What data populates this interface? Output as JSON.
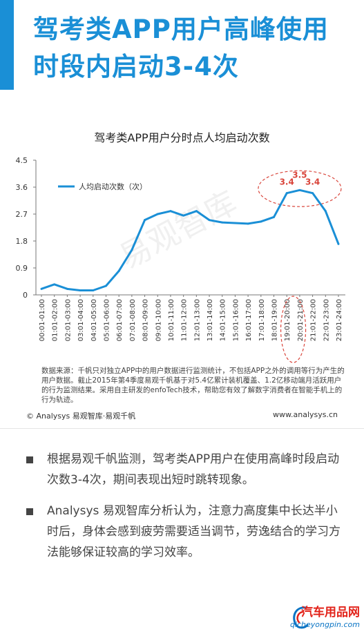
{
  "header": {
    "title_line1": "驾考类APP用户高峰使用",
    "title_line2": "时段内启动3-4次"
  },
  "chart_data": {
    "type": "line",
    "title": "驾考类APP用户分时点人均启动次数",
    "legend_position": "top-left",
    "ylim": [
      0,
      4.5
    ],
    "yticks": [
      "4.5",
      "3.6",
      "2.7",
      "1.8",
      "0.9",
      "0"
    ],
    "categories": [
      "00:01-01:00",
      "01:01-02:00",
      "02:01-03:00",
      "03:01-04:00",
      "04:01-05:00",
      "05:01-06:00",
      "06:01-07:00",
      "07:01-08:00",
      "08:01-09:00",
      "09:01-10:00",
      "10:01-11:00",
      "11:01-12:00",
      "12:01-13:00",
      "13:01-14:00",
      "14:01-15:00",
      "15:01-16:00",
      "16:01-17:00",
      "17:01-18:00",
      "18:01-19:00",
      "19:01-20:00",
      "20:01-21:00",
      "21:01-22:00",
      "22:01-23:00",
      "23:01-24:00"
    ],
    "series": [
      {
        "name": "人均启动次数（次）",
        "color": "#1a8fd6",
        "values": [
          0.2,
          0.35,
          0.2,
          0.15,
          0.15,
          0.3,
          0.8,
          1.5,
          2.5,
          2.7,
          2.8,
          2.65,
          2.8,
          2.5,
          2.42,
          2.4,
          2.38,
          2.45,
          2.6,
          3.4,
          3.5,
          3.4,
          2.8,
          1.7
        ]
      }
    ],
    "annotations": [
      {
        "index": 19,
        "label": "3.4"
      },
      {
        "index": 20,
        "label": "3.5"
      },
      {
        "index": 21,
        "label": "3.4"
      }
    ],
    "highlight_color": "#d9453b"
  },
  "watermark": "易观智库",
  "source_note": "数据来源：千帆只对独立APP中的用户数据进行监测统计，不包括APP之外的调用等行为产生的用户数据。截止2015年第4季度易观千帆基于对5.4亿累计装机覆盖、1.2亿移动端月活跃用户的行为监测结果。采用自主研发的enfoTech技术，帮助您有效了解数字消费者在智能手机上的行为轨迹。",
  "footer": {
    "left": "© Analysys 易观智库·易观千帆",
    "right": "www.analysys.cn"
  },
  "bullets": [
    "根据易观千帆监测，驾考类APP用户在使用高峰时段启动次数3-4次，期间表现出短时跳转现象。",
    "Analysys 易观智库分析认为，注意力高度集中长达半小时后，身体会感到疲劳需要适当调节，劳逸结合的学习方法能够保证较高的学习效率。"
  ],
  "logo": {
    "main": "汽车用品网",
    "sub": "qicheyongpin.com",
    "main_color": "#e2231a",
    "sub_color": "#0a74c4"
  }
}
